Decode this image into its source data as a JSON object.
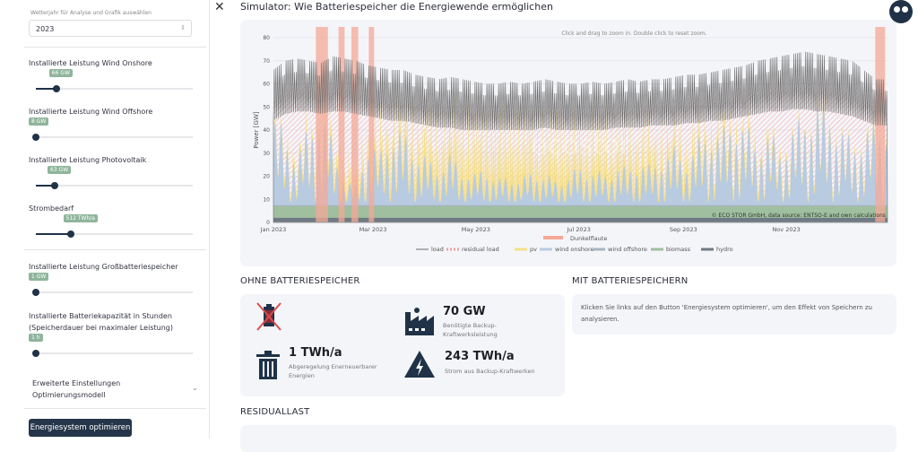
{
  "sidebar": {
    "year_label": "Wetterjahr für Analyse und Grafik auswählen",
    "year_value": "2023",
    "sliders": [
      {
        "label": "Installierte Leistung Wind Onshore",
        "value": "66 GW",
        "fraction": 0.13
      },
      {
        "label": "Installierte Leistung Wind Offshore",
        "value": "8 GW",
        "fraction": 0.0
      },
      {
        "label": "Installierte Leistung Photovoltaik",
        "value": "63 GW",
        "fraction": 0.12
      },
      {
        "label": "Strombedarf",
        "value": "512 TWh/a",
        "fraction": 0.22
      },
      {
        "label": "Installierte Leistung Großbatteriespeicher",
        "value": "1 GW",
        "fraction": 0.0
      },
      {
        "label": "Installierte Batteriekapazität in Stunden",
        "label2": "(Speicherdauer bei maximaler Leistung)",
        "value": "1 h",
        "fraction": 0.0
      }
    ],
    "expander": {
      "line1": "Erweiterte Einstellungen",
      "line2": "Optimierungsmodell"
    },
    "optimize_button": "Energiesystem optimieren"
  },
  "header": {
    "close": "✕",
    "title": "Simulator: Wie Batteriespeicher die Energiewende ermöglichen"
  },
  "chart_data": {
    "type": "area",
    "hint": "Click and drag to zoom in. Double click to reset zoom.",
    "ylabel": "Power [GW]",
    "ylim": [
      0,
      80
    ],
    "yticks": [
      0,
      10,
      20,
      30,
      40,
      50,
      60,
      70,
      80
    ],
    "xticks": [
      "Jan 2023",
      "Mar 2023",
      "May 2023",
      "Jul 2023",
      "Sep 2023",
      "Nov 2023"
    ],
    "watermark": "ecostor",
    "credit": "© ECO STOR GmbH, data source: ENTSO-E and own calculations",
    "dunkelflaute_label": "Dunkelflaute",
    "dunkelflaute_weeks": [
      [
        5.6,
        7.2
      ],
      [
        8.6,
        9.4
      ],
      [
        10.3,
        11.2
      ],
      [
        12.6,
        13.3
      ],
      [
        79.5,
        80.8
      ]
    ],
    "legend": [
      "load",
      "residual load",
      "pv",
      "wind onshore",
      "wind offshore",
      "biomass",
      "hydro"
    ],
    "colors": {
      "load": "#6b6b6b",
      "residual": "#f2a0a0",
      "pv": "#f5df8a",
      "wind_onshore": "#b8cbe0",
      "wind_offshore": "#a9b4c2",
      "biomass": "#9fbf9f",
      "hydro": "#6f7a85",
      "dunkelflaute": "#f4a896"
    },
    "weekly_load_peak_GW": [
      66,
      70,
      71,
      70,
      69,
      72,
      71,
      70,
      68,
      67,
      66,
      66,
      64,
      63,
      62,
      63,
      62,
      61,
      60,
      60,
      61,
      60,
      61,
      62,
      61,
      60,
      60,
      61,
      60,
      61,
      62,
      61,
      62,
      62,
      63,
      64,
      64,
      65,
      66,
      67,
      68,
      70,
      71,
      72,
      73,
      74,
      73,
      72,
      71,
      70,
      66,
      62
    ],
    "weekly_load_min_GW": [
      44,
      47,
      48,
      48,
      47,
      48,
      48,
      47,
      46,
      45,
      44,
      44,
      43,
      42,
      41,
      41,
      40,
      40,
      40,
      40,
      40,
      40,
      40,
      41,
      40,
      40,
      40,
      40,
      40,
      41,
      41,
      41,
      42,
      42,
      42,
      43,
      43,
      44,
      44,
      45,
      46,
      47,
      48,
      48,
      49,
      49,
      48,
      48,
      47,
      46,
      44,
      42
    ],
    "weekly_wind_onshore_GW": [
      35,
      28,
      20,
      30,
      38,
      25,
      10,
      8,
      25,
      20,
      30,
      28,
      22,
      18,
      15,
      20,
      14,
      12,
      15,
      10,
      12,
      10,
      14,
      12,
      10,
      12,
      15,
      14,
      12,
      16,
      14,
      18,
      15,
      20,
      22,
      18,
      25,
      30,
      28,
      35,
      30,
      25,
      28,
      22,
      30,
      35,
      40,
      38,
      30,
      25,
      28,
      32
    ],
    "weekly_pv_peak_GW": [
      6,
      8,
      10,
      12,
      14,
      16,
      18,
      20,
      24,
      26,
      28,
      30,
      32,
      34,
      36,
      38,
      40,
      40,
      42,
      42,
      42,
      42,
      42,
      40,
      40,
      40,
      38,
      38,
      36,
      36,
      34,
      32,
      30,
      28,
      26,
      24,
      22,
      20,
      18,
      16,
      14,
      12,
      10,
      8,
      7,
      6,
      6,
      5,
      5,
      5,
      5,
      5
    ],
    "biomass_GW": 5,
    "hydro_GW": 2
  },
  "without": {
    "title": "OHNE BATTERIESPEICHER",
    "items": [
      {
        "value": "70 GW",
        "desc1": "Benötigte Backup-",
        "desc2": "Kraftwerksleistung"
      },
      {
        "value": "1 TWh/a",
        "desc1": "Abgeregelung Enerneuerbarer",
        "desc2": "Energien"
      },
      {
        "value": "243 TWh/a",
        "desc1": "Strom aus Backup-Kraftwerken",
        "desc2": ""
      }
    ]
  },
  "with": {
    "title": "MIT BATTERIESPEICHERN",
    "text": "Klicken Sie links auf den Button 'Energiesystem optimieren', um den Effekt von Speichern zu analysieren."
  },
  "residual": {
    "title": "RESIDUALLAST"
  }
}
